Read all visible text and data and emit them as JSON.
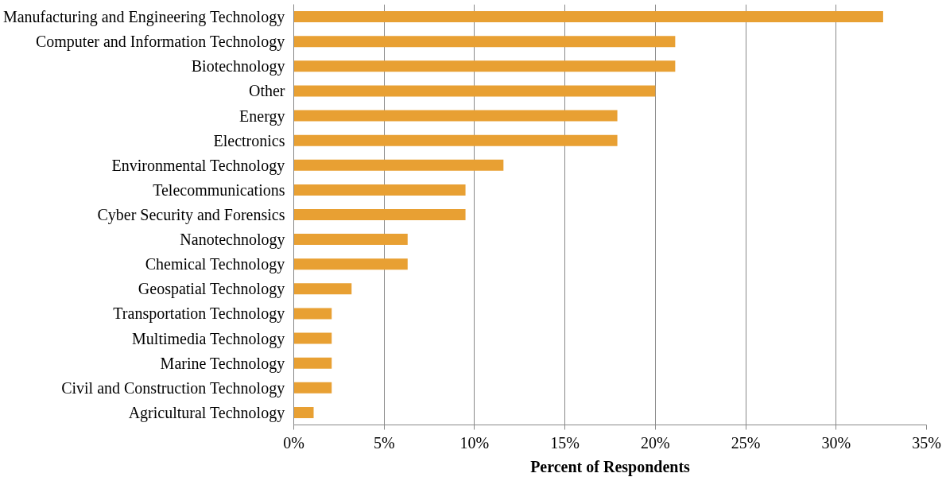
{
  "chart_data": {
    "type": "bar",
    "orientation": "horizontal",
    "xlabel": "Percent of Respondents",
    "categories": [
      "Manufacturing and Engineering Technology",
      "Computer and Information Technology",
      "Biotechnology",
      "Other",
      "Energy",
      "Electronics",
      "Environmental Technology",
      "Telecommunications",
      "Cyber Security and Forensics",
      "Nanotechnology",
      "Chemical Technology",
      "Geospatial Technology",
      "Transportation Technology",
      "Multimedia Technology",
      "Marine Technology",
      "Civil and Construction Technology",
      "Agricultural Technology"
    ],
    "values": [
      32.6,
      21.1,
      21.1,
      20.0,
      17.9,
      17.9,
      11.6,
      9.5,
      9.5,
      6.3,
      6.3,
      3.2,
      2.1,
      2.1,
      2.1,
      2.1,
      1.1
    ],
    "color": "#e8a033",
    "xlim": [
      0,
      35
    ],
    "xticks": [
      {
        "value": 0,
        "label": "0%"
      },
      {
        "value": 5,
        "label": "5%"
      },
      {
        "value": 10,
        "label": "10%"
      },
      {
        "value": 15,
        "label": "15%"
      },
      {
        "value": 20,
        "label": "20%"
      },
      {
        "value": 25,
        "label": "25%"
      },
      {
        "value": 30,
        "label": "30%"
      },
      {
        "value": 35,
        "label": "35%"
      }
    ],
    "grid": "x"
  }
}
